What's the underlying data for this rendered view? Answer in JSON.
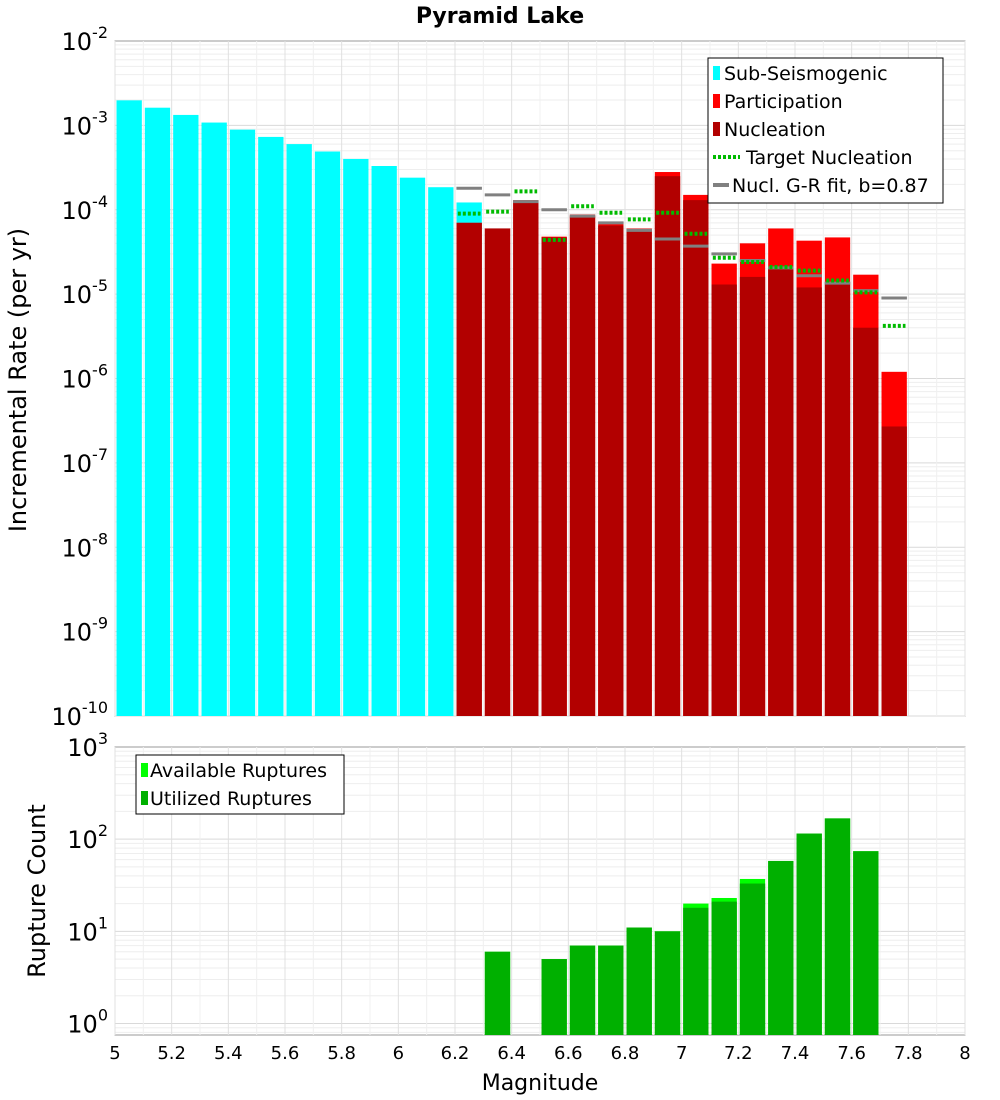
{
  "chart_data": [
    {
      "type": "bar",
      "title": "Pyramid Lake",
      "xlabel": "",
      "ylabel": "Incremental Rate (per yr)",
      "yscale": "log",
      "ylim": [
        1e-10,
        0.01
      ],
      "xlim": [
        5,
        8
      ],
      "y_tick_exponents": [
        -10,
        -9,
        -8,
        -7,
        -6,
        -5,
        -4,
        -3,
        -2
      ],
      "legend": {
        "position": "top-right",
        "entries": [
          {
            "label": "Sub-Seismogenic",
            "color": "#00ffff",
            "style": "patch"
          },
          {
            "label": "Participation",
            "color": "#ff0000",
            "style": "patch"
          },
          {
            "label": "Nucleation",
            "color": "#b20000",
            "style": "patch"
          },
          {
            "label": "Target Nucleation",
            "color": "#00bb00",
            "style": "dotted"
          },
          {
            "label": "Nucl. G-R fit, b=0.87",
            "color": "#808080",
            "style": "solid"
          }
        ]
      },
      "bin_width": 0.1,
      "sub_seismogenic": {
        "name": "Sub-Seismogenic",
        "color": "#00ffff",
        "x": [
          5.05,
          5.15,
          5.25,
          5.35,
          5.45,
          5.55,
          5.65,
          5.75,
          5.85,
          5.95,
          6.05,
          6.15,
          6.25
        ],
        "values": [
          0.00198,
          0.00162,
          0.00133,
          0.00108,
          0.00089,
          0.00073,
          0.0006,
          0.00049,
          0.0004,
          0.00033,
          0.00024,
          0.000185,
          0.000122
        ]
      },
      "participation": {
        "name": "Participation",
        "color": "#ff0000",
        "x": [
          6.25,
          6.35,
          6.45,
          6.55,
          6.65,
          6.75,
          6.85,
          6.95,
          7.05,
          7.15,
          7.25,
          7.35,
          7.45,
          7.55,
          7.65,
          7.75
        ],
        "values": [
          7e-05,
          6e-05,
          0.00013,
          4.8e-05,
          8.8e-05,
          6.8e-05,
          6e-05,
          0.00028,
          0.00015,
          2.3e-05,
          4e-05,
          6e-05,
          4.3e-05,
          4.7e-05,
          1.7e-05,
          1.2e-06
        ]
      },
      "nucleation": {
        "name": "Nucleation",
        "color": "#b20000",
        "x": [
          6.25,
          6.35,
          6.45,
          6.55,
          6.65,
          6.75,
          6.85,
          6.95,
          7.05,
          7.15,
          7.25,
          7.35,
          7.45,
          7.55,
          7.65,
          7.75
        ],
        "values": [
          7e-05,
          6e-05,
          0.000125,
          4.7e-05,
          8.4e-05,
          6.5e-05,
          5.6e-05,
          0.00025,
          0.00013,
          1.3e-05,
          1.6e-05,
          2e-05,
          1.2e-05,
          1.4e-05,
          4e-06,
          2.7e-07
        ]
      },
      "target_nucleation": {
        "name": "Target Nucleation",
        "color": "#00bb00",
        "x": [
          6.25,
          6.35,
          6.45,
          6.55,
          6.65,
          6.75,
          6.85,
          6.95,
          7.05,
          7.15,
          7.25,
          7.35,
          7.45,
          7.55,
          7.65,
          7.75
        ],
        "values": [
          9e-05,
          9.5e-05,
          0.000165,
          4.4e-05,
          0.00011,
          9.2e-05,
          7.7e-05,
          9.2e-05,
          5.2e-05,
          2.7e-05,
          2.4e-05,
          2.1e-05,
          1.9e-05,
          1.45e-05,
          1.05e-05,
          4.2e-06
        ]
      },
      "gr_fit": {
        "name": "Nucl. G-R fit, b=0.87",
        "color": "#808080",
        "x": [
          6.25,
          6.35,
          6.45,
          6.55,
          6.65,
          6.75,
          6.85,
          6.95,
          7.05,
          7.15,
          7.25,
          7.35,
          7.45,
          7.55,
          7.65,
          7.75
        ],
        "values": [
          0.00018,
          0.00015,
          0.000125,
          0.0001,
          8.4e-05,
          7e-05,
          5.7e-05,
          4.5e-05,
          3.7e-05,
          3e-05,
          2.5e-05,
          2.05e-05,
          1.65e-05,
          1.35e-05,
          1.1e-05,
          9e-06
        ]
      }
    },
    {
      "type": "bar",
      "title": "",
      "xlabel": "Magnitude",
      "ylabel": "Rupture Count",
      "yscale": "log",
      "ylim": [
        0.75,
        1000
      ],
      "xlim": [
        5,
        8
      ],
      "x_ticks": [
        "5",
        "5.2",
        "5.4",
        "5.6",
        "5.8",
        "6",
        "6.2",
        "6.4",
        "6.6",
        "6.8",
        "7",
        "7.2",
        "7.4",
        "7.6",
        "7.8",
        "8"
      ],
      "y_tick_exponents": [
        0,
        1,
        2,
        3
      ],
      "legend": {
        "position": "top-left",
        "entries": [
          {
            "label": "Available Ruptures",
            "color": "#00ff00",
            "style": "patch"
          },
          {
            "label": "Utilized Ruptures",
            "color": "#00b000",
            "style": "patch"
          }
        ]
      },
      "bin_width": 0.1,
      "available": {
        "name": "Available Ruptures",
        "color": "#00ff00",
        "x": [
          6.35,
          6.55,
          6.65,
          6.75,
          6.85,
          6.95,
          7.05,
          7.15,
          7.25,
          7.35,
          7.45,
          7.55,
          7.65
        ],
        "values": [
          6,
          5,
          7,
          7,
          11,
          10,
          20,
          23,
          37,
          58,
          115,
          168,
          74
        ]
      },
      "utilized": {
        "name": "Utilized Ruptures",
        "color": "#00b000",
        "x": [
          6.35,
          6.55,
          6.65,
          6.75,
          6.85,
          6.95,
          7.05,
          7.15,
          7.25,
          7.35,
          7.45,
          7.55,
          7.65
        ],
        "values": [
          6,
          5,
          7,
          7,
          11,
          10,
          18,
          21,
          33,
          58,
          115,
          168,
          74
        ]
      }
    }
  ]
}
